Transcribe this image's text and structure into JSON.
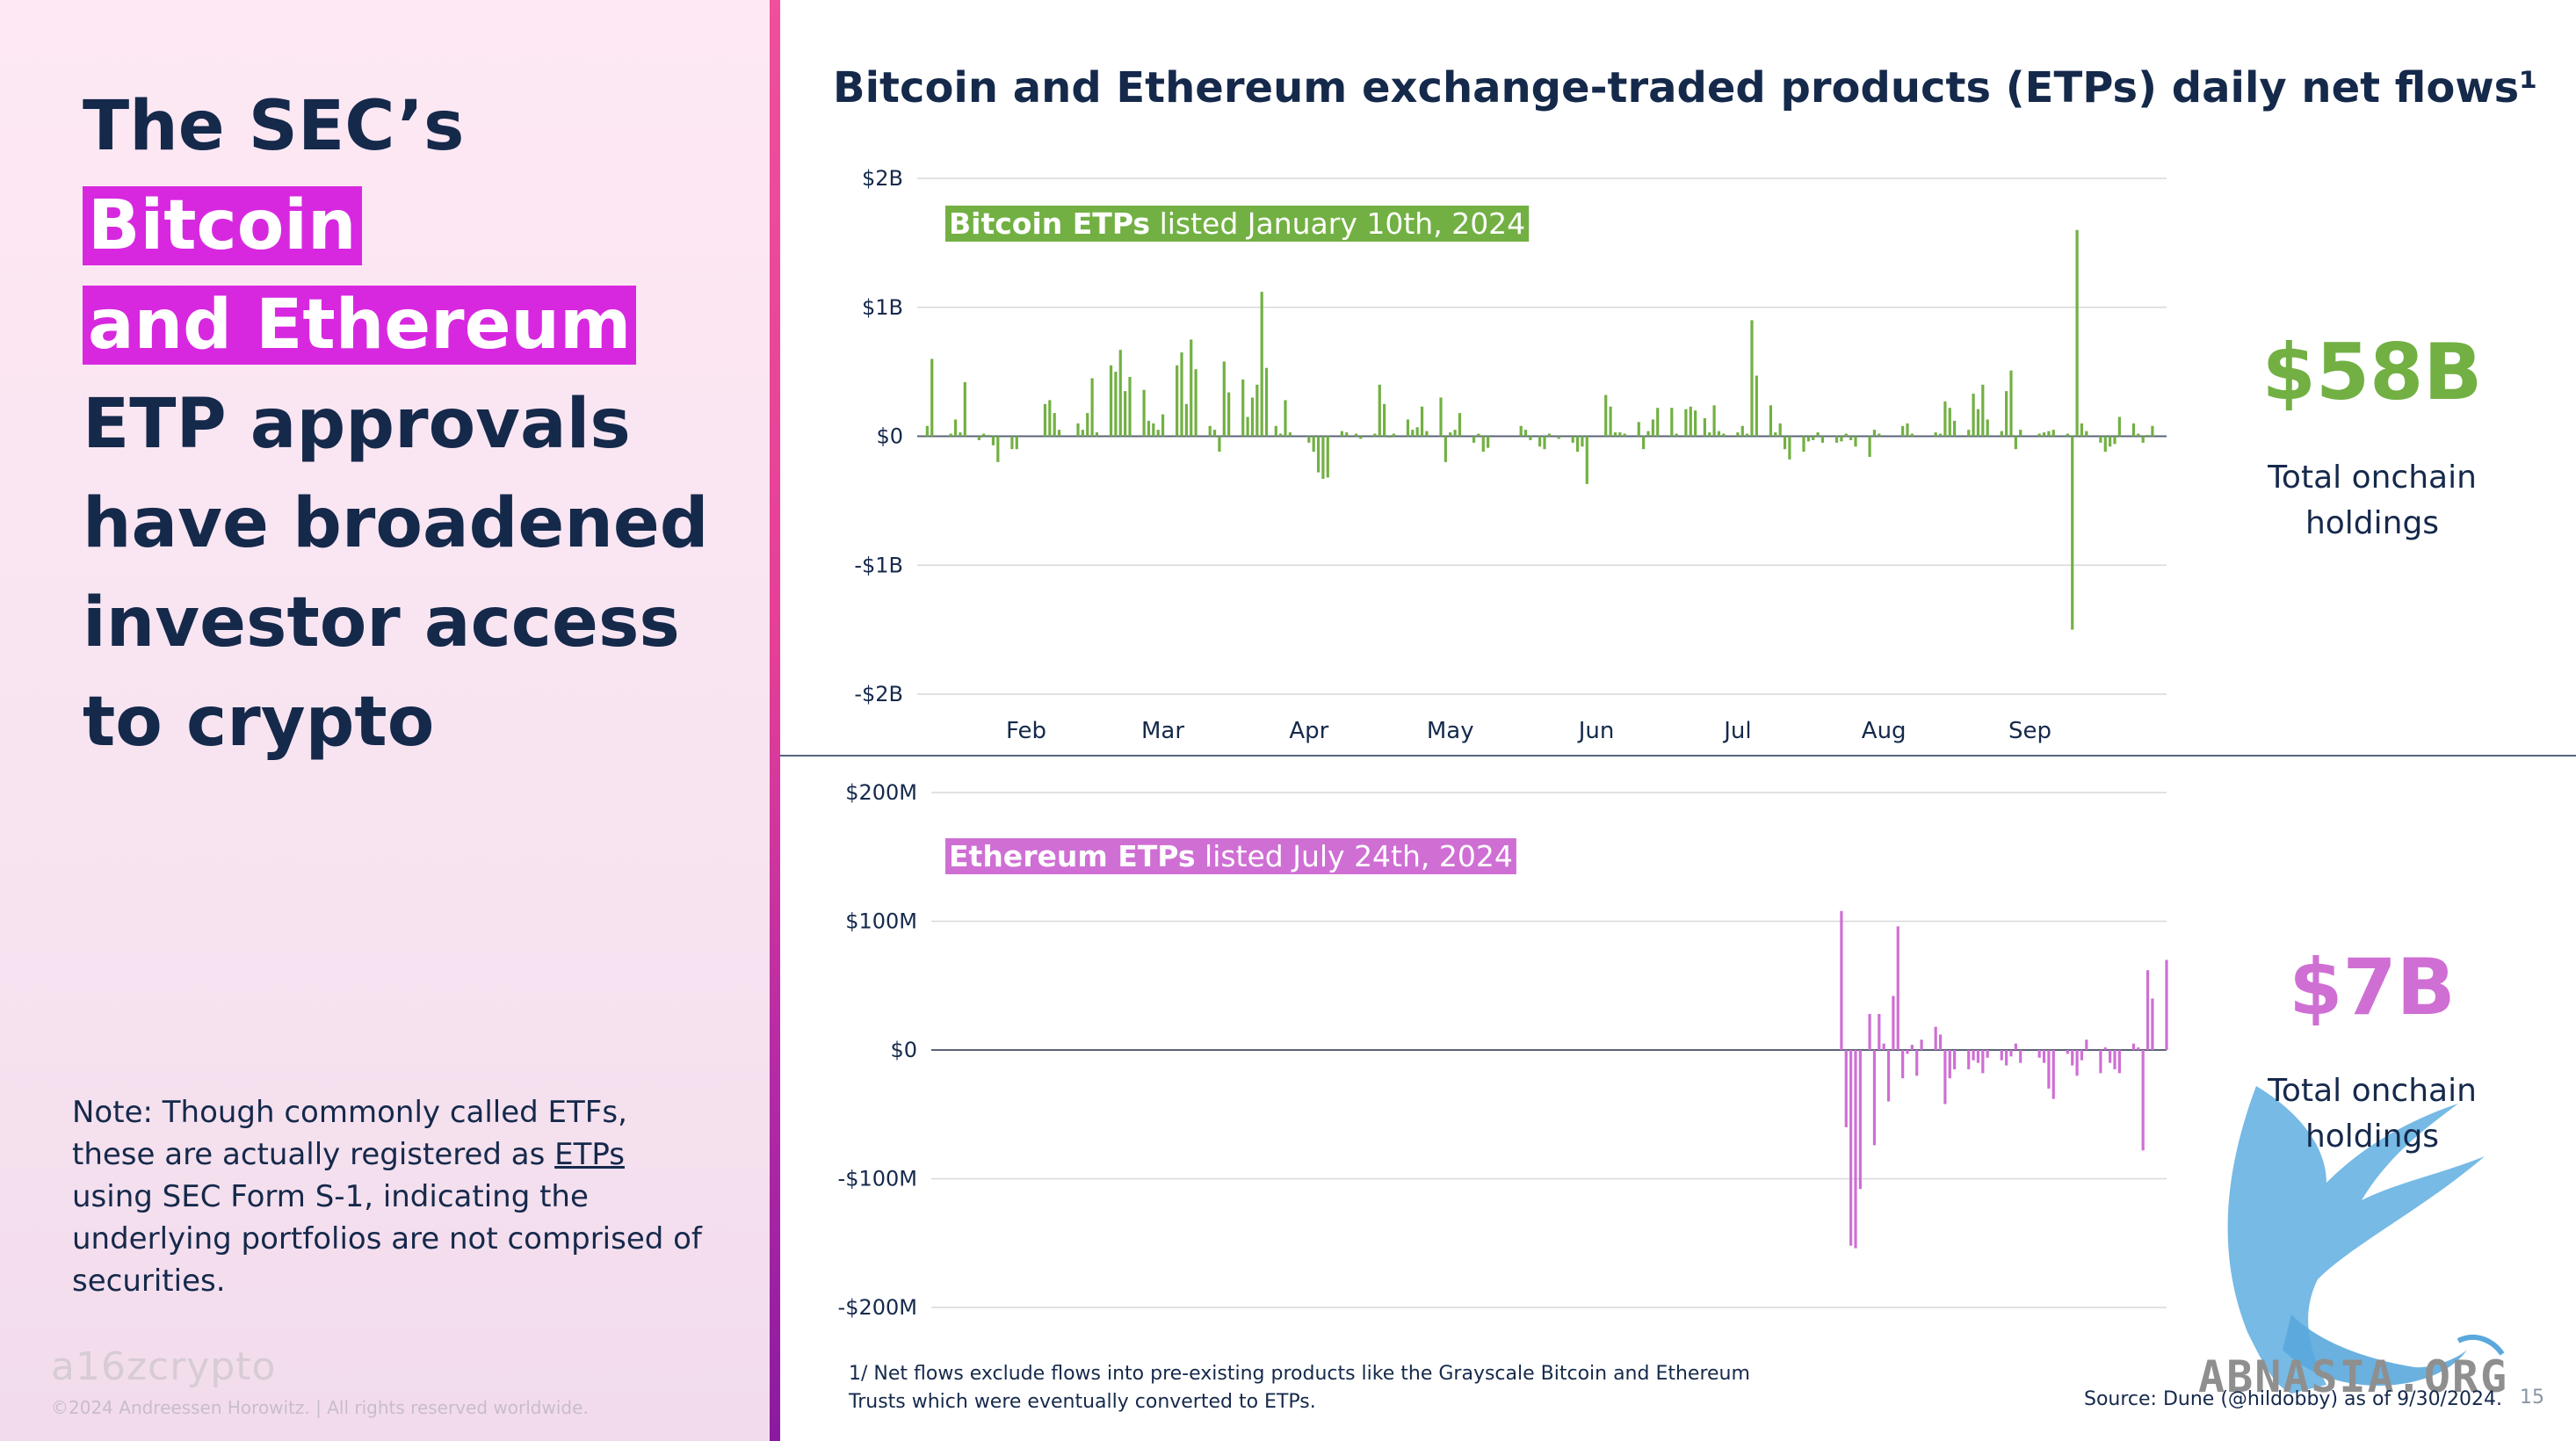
{
  "headline": {
    "pre": "The SEC’s ",
    "highlight_1": "Bitcoin",
    "highlight_2": "and Ethereum",
    "post_lines": [
      "ETP approvals",
      "have broadened",
      "investor access",
      "to crypto"
    ]
  },
  "note": {
    "pre": "Note: Though commonly called ETFs, these are actually registered as ",
    "link": "ETPs",
    "post": " using SEC Form S-1, indicating the underlying portfolios are not comprised of securities."
  },
  "brand": "a16zcrypto",
  "copyright": "©2024 Andreessen Horowitz. |  All rights reserved worldwide.",
  "title": "Bitcoin and Ethereum exchange-traded products (ETPs) daily net flows¹",
  "btc_stat": {
    "value": "$58B",
    "label_1": "Total onchain",
    "label_2": "holdings",
    "color": "#72b043"
  },
  "eth_stat": {
    "value": "$7B",
    "label_1": "Total onchain",
    "label_2": "holdings",
    "color": "#cf6fd4"
  },
  "footnote": "1/ Net flows exclude flows into pre-existing products like the Grayscale Bitcoin and Ethereum Trusts which were eventually converted to ETPs.",
  "source": "Source: Dune (@hildobby) as of 9/30/2024.",
  "page_number": "15",
  "watermark": "ABNASIA.ORG",
  "chart_data": [
    {
      "type": "bar",
      "series_color": "#72b043",
      "annotation": {
        "bold": "Bitcoin ETPs",
        "rest": " listed January 10th, 2024"
      },
      "y_ticks": [
        {
          "v": 2,
          "label": "$2B"
        },
        {
          "v": 1,
          "label": "$1B"
        },
        {
          "v": 0,
          "label": "$0"
        },
        {
          "v": -1,
          "label": "-$1B"
        },
        {
          "v": -2,
          "label": "-$2B"
        }
      ],
      "ylim": [
        -2,
        2
      ],
      "y_unit": "billions USD",
      "x_domain": [
        "2024-01-10",
        "2024-09-30"
      ],
      "x_ticks": [
        {
          "date": "2024-02-01",
          "label": "Feb"
        },
        {
          "date": "2024-03-01",
          "label": "Mar"
        },
        {
          "date": "2024-04-01",
          "label": "Apr"
        },
        {
          "date": "2024-05-01",
          "label": "May"
        },
        {
          "date": "2024-06-01",
          "label": "Jun"
        },
        {
          "date": "2024-07-01",
          "label": "Jul"
        },
        {
          "date": "2024-08-01",
          "label": "Aug"
        },
        {
          "date": "2024-09-01",
          "label": "Sep"
        }
      ],
      "points": [
        [
          "2024-01-11",
          0.08
        ],
        [
          "2024-01-12",
          0.6
        ],
        [
          "2024-01-16",
          0.02
        ],
        [
          "2024-01-17",
          0.13
        ],
        [
          "2024-01-18",
          0.03
        ],
        [
          "2024-01-19",
          0.42
        ],
        [
          "2024-01-22",
          -0.03
        ],
        [
          "2024-01-23",
          0.02
        ],
        [
          "2024-01-24",
          0.01
        ],
        [
          "2024-01-25",
          -0.07
        ],
        [
          "2024-01-26",
          -0.2
        ],
        [
          "2024-01-29",
          -0.1
        ],
        [
          "2024-01-30",
          -0.1
        ],
        [
          "2024-02-05",
          0.25
        ],
        [
          "2024-02-06",
          0.28
        ],
        [
          "2024-02-07",
          0.18
        ],
        [
          "2024-02-08",
          0.05
        ],
        [
          "2024-02-12",
          0.1
        ],
        [
          "2024-02-13",
          0.05
        ],
        [
          "2024-02-14",
          0.18
        ],
        [
          "2024-02-15",
          0.45
        ],
        [
          "2024-02-16",
          0.03
        ],
        [
          "2024-02-19",
          0.55
        ],
        [
          "2024-02-20",
          0.5
        ],
        [
          "2024-02-21",
          0.67
        ],
        [
          "2024-02-22",
          0.35
        ],
        [
          "2024-02-23",
          0.46
        ],
        [
          "2024-02-26",
          0.36
        ],
        [
          "2024-02-27",
          0.12
        ],
        [
          "2024-02-28",
          0.1
        ],
        [
          "2024-02-29",
          0.05
        ],
        [
          "2024-03-01",
          0.17
        ],
        [
          "2024-03-04",
          0.55
        ],
        [
          "2024-03-05",
          0.65
        ],
        [
          "2024-03-06",
          0.25
        ],
        [
          "2024-03-07",
          0.75
        ],
        [
          "2024-03-08",
          0.52
        ],
        [
          "2024-03-11",
          0.08
        ],
        [
          "2024-03-12",
          0.05
        ],
        [
          "2024-03-13",
          -0.12
        ],
        [
          "2024-03-14",
          0.58
        ],
        [
          "2024-03-15",
          0.34
        ],
        [
          "2024-03-18",
          0.44
        ],
        [
          "2024-03-19",
          0.15
        ],
        [
          "2024-03-20",
          0.3
        ],
        [
          "2024-03-21",
          0.4
        ],
        [
          "2024-03-22",
          1.12
        ],
        [
          "2024-03-23",
          0.53
        ],
        [
          "2024-03-25",
          0.08
        ],
        [
          "2024-03-26",
          0.02
        ],
        [
          "2024-03-27",
          0.28
        ],
        [
          "2024-03-28",
          0.03
        ],
        [
          "2024-04-01",
          -0.05
        ],
        [
          "2024-04-02",
          -0.12
        ],
        [
          "2024-04-03",
          -0.28
        ],
        [
          "2024-04-04",
          -0.33
        ],
        [
          "2024-04-05",
          -0.32
        ],
        [
          "2024-04-08",
          0.04
        ],
        [
          "2024-04-09",
          0.03
        ],
        [
          "2024-04-11",
          0.02
        ],
        [
          "2024-04-12",
          -0.02
        ],
        [
          "2024-04-15",
          0.02
        ],
        [
          "2024-04-16",
          0.4
        ],
        [
          "2024-04-17",
          0.25
        ],
        [
          "2024-04-18",
          -0.01
        ],
        [
          "2024-04-19",
          0.02
        ],
        [
          "2024-04-22",
          0.13
        ],
        [
          "2024-04-23",
          0.05
        ],
        [
          "2024-04-24",
          0.07
        ],
        [
          "2024-04-25",
          0.23
        ],
        [
          "2024-04-26",
          0.04
        ],
        [
          "2024-04-29",
          0.3
        ],
        [
          "2024-04-30",
          -0.2
        ],
        [
          "2024-05-01",
          0.03
        ],
        [
          "2024-05-02",
          0.05
        ],
        [
          "2024-05-03",
          0.18
        ],
        [
          "2024-05-06",
          -0.05
        ],
        [
          "2024-05-07",
          0.02
        ],
        [
          "2024-05-08",
          -0.12
        ],
        [
          "2024-05-09",
          -0.09
        ],
        [
          "2024-05-16",
          0.08
        ],
        [
          "2024-05-17",
          0.05
        ],
        [
          "2024-05-18",
          -0.03
        ],
        [
          "2024-05-20",
          -0.08
        ],
        [
          "2024-05-21",
          -0.1
        ],
        [
          "2024-05-22",
          0.02
        ],
        [
          "2024-05-24",
          -0.02
        ],
        [
          "2024-05-27",
          -0.05
        ],
        [
          "2024-05-28",
          -0.12
        ],
        [
          "2024-05-29",
          -0.08
        ],
        [
          "2024-05-30",
          -0.37
        ],
        [
          "2024-06-03",
          0.32
        ],
        [
          "2024-06-04",
          0.23
        ],
        [
          "2024-06-05",
          0.03
        ],
        [
          "2024-06-06",
          0.03
        ],
        [
          "2024-06-07",
          0.02
        ],
        [
          "2024-06-10",
          0.11
        ],
        [
          "2024-06-11",
          -0.1
        ],
        [
          "2024-06-12",
          0.04
        ],
        [
          "2024-06-13",
          0.13
        ],
        [
          "2024-06-14",
          0.22
        ],
        [
          "2024-06-17",
          0.22
        ],
        [
          "2024-06-18",
          0.02
        ],
        [
          "2024-06-20",
          0.21
        ],
        [
          "2024-06-21",
          0.23
        ],
        [
          "2024-06-22",
          0.2
        ],
        [
          "2024-06-24",
          0.14
        ],
        [
          "2024-06-25",
          0.03
        ],
        [
          "2024-06-26",
          0.24
        ],
        [
          "2024-06-27",
          0.04
        ],
        [
          "2024-06-28",
          0.02
        ],
        [
          "2024-07-01",
          0.03
        ],
        [
          "2024-07-02",
          0.08
        ],
        [
          "2024-07-03",
          0.02
        ],
        [
          "2024-07-04",
          0.9
        ],
        [
          "2024-07-05",
          0.47
        ],
        [
          "2024-07-08",
          0.24
        ],
        [
          "2024-07-09",
          0.03
        ],
        [
          "2024-07-10",
          0.1
        ],
        [
          "2024-07-11",
          -0.1
        ],
        [
          "2024-07-12",
          -0.18
        ],
        [
          "2024-07-15",
          -0.12
        ],
        [
          "2024-07-16",
          -0.04
        ],
        [
          "2024-07-17",
          -0.03
        ],
        [
          "2024-07-18",
          0.03
        ],
        [
          "2024-07-19",
          -0.05
        ],
        [
          "2024-07-22",
          -0.05
        ],
        [
          "2024-07-23",
          -0.04
        ],
        [
          "2024-07-24",
          0.02
        ],
        [
          "2024-07-25",
          -0.03
        ],
        [
          "2024-07-26",
          -0.08
        ],
        [
          "2024-07-29",
          -0.16
        ],
        [
          "2024-07-30",
          0.05
        ],
        [
          "2024-07-31",
          0.02
        ],
        [
          "2024-08-05",
          0.08
        ],
        [
          "2024-08-06",
          0.1
        ],
        [
          "2024-08-07",
          0.02
        ],
        [
          "2024-08-12",
          0.03
        ],
        [
          "2024-08-13",
          0.02
        ],
        [
          "2024-08-14",
          0.27
        ],
        [
          "2024-08-15",
          0.22
        ],
        [
          "2024-08-16",
          0.12
        ],
        [
          "2024-08-19",
          0.05
        ],
        [
          "2024-08-20",
          0.33
        ],
        [
          "2024-08-21",
          0.21
        ],
        [
          "2024-08-22",
          0.4
        ],
        [
          "2024-08-23",
          0.13
        ],
        [
          "2024-08-26",
          0.04
        ],
        [
          "2024-08-27",
          0.35
        ],
        [
          "2024-08-28",
          0.51
        ],
        [
          "2024-08-29",
          -0.1
        ],
        [
          "2024-08-30",
          0.05
        ],
        [
          "2024-09-03",
          0.02
        ],
        [
          "2024-09-04",
          0.03
        ],
        [
          "2024-09-05",
          0.04
        ],
        [
          "2024-09-06",
          0.05
        ],
        [
          "2024-09-09",
          0.02
        ],
        [
          "2024-09-10",
          -1.5
        ],
        [
          "2024-09-11",
          1.6
        ],
        [
          "2024-09-12",
          0.1
        ],
        [
          "2024-09-13",
          0.04
        ],
        [
          "2024-09-16",
          -0.05
        ],
        [
          "2024-09-17",
          -0.12
        ],
        [
          "2024-09-18",
          -0.08
        ],
        [
          "2024-09-19",
          -0.06
        ],
        [
          "2024-09-20",
          0.15
        ],
        [
          "2024-09-23",
          0.1
        ],
        [
          "2024-09-24",
          0.02
        ],
        [
          "2024-09-25",
          -0.05
        ],
        [
          "2024-09-26",
          0.01
        ],
        [
          "2024-09-27",
          0.08
        ]
      ]
    },
    {
      "type": "bar",
      "series_color": "#cf6fd4",
      "annotation": {
        "bold": "Ethereum ETPs",
        "rest": " listed July 24th, 2024"
      },
      "y_ticks": [
        {
          "v": 200,
          "label": "$200M"
        },
        {
          "v": 100,
          "label": "$100M"
        },
        {
          "v": 0,
          "label": "$0"
        },
        {
          "v": -100,
          "label": "-$100M"
        },
        {
          "v": -200,
          "label": "-$200M"
        }
      ],
      "ylim": [
        -200,
        200
      ],
      "y_unit": "millions USD",
      "x_domain": [
        "2024-01-10",
        "2024-09-30"
      ],
      "points": [
        [
          "2024-07-23",
          108
        ],
        [
          "2024-07-24",
          -60
        ],
        [
          "2024-07-25",
          -152
        ],
        [
          "2024-07-26",
          -154
        ],
        [
          "2024-07-27",
          -108
        ],
        [
          "2024-07-29",
          28
        ],
        [
          "2024-07-30",
          -74
        ],
        [
          "2024-07-31",
          28
        ],
        [
          "2024-08-01",
          5
        ],
        [
          "2024-08-02",
          -40
        ],
        [
          "2024-08-03",
          42
        ],
        [
          "2024-08-04",
          96
        ],
        [
          "2024-08-05",
          -22
        ],
        [
          "2024-08-06",
          -3
        ],
        [
          "2024-08-07",
          4
        ],
        [
          "2024-08-08",
          -20
        ],
        [
          "2024-08-09",
          8
        ],
        [
          "2024-08-12",
          18
        ],
        [
          "2024-08-13",
          12
        ],
        [
          "2024-08-14",
          -42
        ],
        [
          "2024-08-15",
          -22
        ],
        [
          "2024-08-16",
          -15
        ],
        [
          "2024-08-19",
          -15
        ],
        [
          "2024-08-20",
          -8
        ],
        [
          "2024-08-21",
          -10
        ],
        [
          "2024-08-22",
          -18
        ],
        [
          "2024-08-23",
          -6
        ],
        [
          "2024-08-26",
          -8
        ],
        [
          "2024-08-27",
          -12
        ],
        [
          "2024-08-28",
          -5
        ],
        [
          "2024-08-29",
          5
        ],
        [
          "2024-08-30",
          -10
        ],
        [
          "2024-09-03",
          -6
        ],
        [
          "2024-09-04",
          -10
        ],
        [
          "2024-09-05",
          -30
        ],
        [
          "2024-09-06",
          -38
        ],
        [
          "2024-09-09",
          -3
        ],
        [
          "2024-09-10",
          -12
        ],
        [
          "2024-09-11",
          -20
        ],
        [
          "2024-09-12",
          -8
        ],
        [
          "2024-09-13",
          8
        ],
        [
          "2024-09-16",
          -18
        ],
        [
          "2024-09-17",
          2
        ],
        [
          "2024-09-18",
          -10
        ],
        [
          "2024-09-19",
          -15
        ],
        [
          "2024-09-20",
          -18
        ],
        [
          "2024-09-23",
          5
        ],
        [
          "2024-09-24",
          2
        ],
        [
          "2024-09-25",
          -78
        ],
        [
          "2024-09-26",
          62
        ],
        [
          "2024-09-27",
          40
        ],
        [
          "2024-09-30",
          70
        ]
      ]
    }
  ]
}
